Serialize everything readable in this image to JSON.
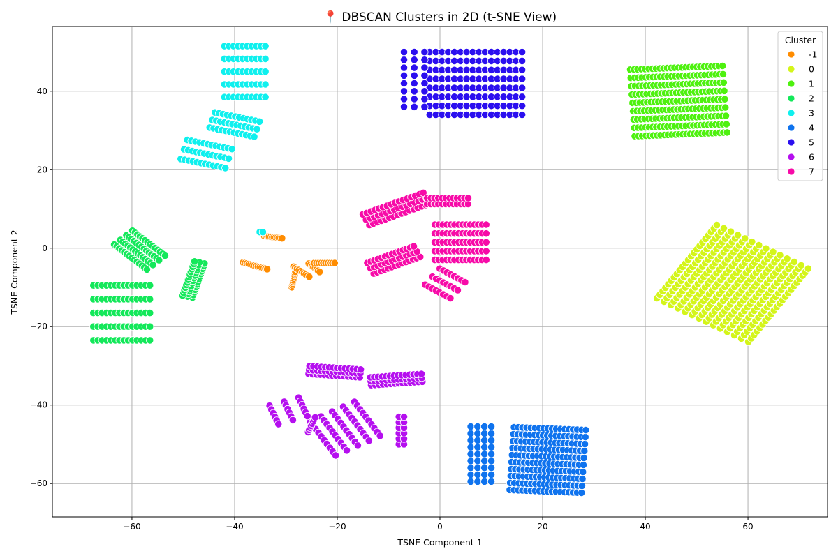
{
  "chart_data": {
    "type": "scatter",
    "title": "📍 DBSCAN Clusters in 2D (t-SNE View)",
    "xlabel": "TSNE Component 1",
    "ylabel": "TSNE Component 2",
    "xlim": [
      -75.5,
      75.5
    ],
    "ylim": [
      -68.5,
      56.5
    ],
    "xticks": [
      -60,
      -40,
      -20,
      0,
      20,
      40,
      60
    ],
    "yticks": [
      -60,
      -40,
      -20,
      0,
      20,
      40
    ],
    "xtick_labels": [
      "−60",
      "−40",
      "−20",
      "0",
      "20",
      "40",
      "60"
    ],
    "ytick_labels": [
      "−60",
      "−40",
      "−20",
      "0",
      "20",
      "40"
    ],
    "grid": true,
    "legend": {
      "title": "Cluster",
      "position": "top-right"
    },
    "series": [
      {
        "name": "-1",
        "color": "#ff8c00",
        "groups": [
          {
            "shape": "line",
            "cx": -32.5,
            "cy": 2.8,
            "len": 3.5,
            "angle": -10,
            "n": 12
          },
          {
            "shape": "line",
            "cx": -36,
            "cy": -4.5,
            "len": 5,
            "angle": -20,
            "n": 14
          },
          {
            "shape": "line",
            "cx": -28.5,
            "cy": -8,
            "len": 4,
            "angle": 80,
            "n": 10
          },
          {
            "shape": "line",
            "cx": -27,
            "cy": -6,
            "len": 4,
            "angle": -40,
            "n": 10
          },
          {
            "shape": "line",
            "cx": -24.5,
            "cy": -5,
            "len": 3,
            "angle": -45,
            "n": 8
          },
          {
            "shape": "line",
            "cx": -22.5,
            "cy": -3.8,
            "len": 4,
            "angle": 0,
            "n": 10
          }
        ]
      },
      {
        "name": "0",
        "color": "#d4f51a",
        "groups": [
          {
            "shape": "rows",
            "cx": 57,
            "cy": -9,
            "w": 22,
            "h": 21,
            "angle": 58,
            "rows": 14,
            "cols": 22
          }
        ]
      },
      {
        "name": "1",
        "color": "#4ef10f",
        "groups": [
          {
            "shape": "rows",
            "cx": 46.5,
            "cy": 37.5,
            "w": 18,
            "h": 17,
            "angle": 3,
            "rows": 9,
            "cols": 26
          }
        ]
      },
      {
        "name": "2",
        "color": "#13e85a",
        "groups": [
          {
            "shape": "rows",
            "cx": -62,
            "cy": -16.5,
            "w": 11,
            "h": 14,
            "angle": 0,
            "rows": 5,
            "cols": 14
          },
          {
            "shape": "rows",
            "cx": -58.5,
            "cy": -0.5,
            "w": 9,
            "h": 5,
            "angle": -45,
            "rows": 4,
            "cols": 14
          },
          {
            "shape": "rows",
            "cx": -48,
            "cy": -8,
            "w": 9,
            "h": 2,
            "angle": 75,
            "rows": 3,
            "cols": 14
          }
        ]
      },
      {
        "name": "3",
        "color": "#0ff0ee",
        "groups": [
          {
            "shape": "rows",
            "cx": -38,
            "cy": 45,
            "w": 8,
            "h": 13,
            "angle": 0,
            "rows": 5,
            "cols": 10
          },
          {
            "shape": "rows",
            "cx": -40,
            "cy": 31.5,
            "w": 9,
            "h": 4,
            "angle": -15,
            "rows": 3,
            "cols": 12
          },
          {
            "shape": "rows",
            "cx": -45.5,
            "cy": 24,
            "w": 9,
            "h": 5,
            "angle": -15,
            "rows": 3,
            "cols": 12
          },
          {
            "shape": "line",
            "cx": -34.8,
            "cy": 4.1,
            "len": 0.6,
            "angle": 0,
            "n": 2
          }
        ]
      },
      {
        "name": "4",
        "color": "#0f73ee",
        "groups": [
          {
            "shape": "rows",
            "cx": 21,
            "cy": -54,
            "w": 14,
            "h": 16,
            "angle": -3,
            "rows": 10,
            "cols": 18
          },
          {
            "shape": "rows",
            "cx": 8,
            "cy": -52.5,
            "w": 4,
            "h": 14,
            "angle": 0,
            "rows": 9,
            "cols": 4
          }
        ]
      },
      {
        "name": "5",
        "color": "#2b0fef",
        "groups": [
          {
            "shape": "rows",
            "cx": 7,
            "cy": 42,
            "w": 18,
            "h": 16,
            "angle": 0,
            "rows": 8,
            "cols": 16
          },
          {
            "shape": "rows",
            "cx": -5,
            "cy": 43,
            "w": 4,
            "h": 14,
            "angle": 0,
            "rows": 8,
            "cols": 3
          }
        ]
      },
      {
        "name": "6",
        "color": "#b50fef",
        "groups": [
          {
            "shape": "rows",
            "cx": -20.5,
            "cy": -31.5,
            "w": 10,
            "h": 2,
            "angle": -5,
            "rows": 3,
            "cols": 14
          },
          {
            "shape": "rows",
            "cx": -8.5,
            "cy": -33.5,
            "w": 10,
            "h": 2,
            "angle": 5,
            "rows": 3,
            "cols": 14
          },
          {
            "shape": "rows",
            "cx": -18.5,
            "cy": -46,
            "w": 10,
            "h": 10,
            "angle": -60,
            "rows": 5,
            "cols": 10
          },
          {
            "shape": "rows",
            "cx": -29.5,
            "cy": -41.5,
            "w": 5,
            "h": 6,
            "angle": -70,
            "rows": 3,
            "cols": 6
          },
          {
            "shape": "rows",
            "cx": -7.5,
            "cy": -46.5,
            "w": 1,
            "h": 7,
            "angle": 0,
            "rows": 6,
            "cols": 2
          },
          {
            "shape": "line",
            "cx": -25,
            "cy": -45,
            "len": 4,
            "angle": 70,
            "n": 8
          }
        ]
      },
      {
        "name": "7",
        "color": "#f70ba8",
        "groups": [
          {
            "shape": "rows",
            "cx": -8.5,
            "cy": 10,
            "w": 13,
            "h": 3,
            "angle": 25,
            "rows": 3,
            "cols": 16
          },
          {
            "shape": "rows",
            "cx": 1.5,
            "cy": 12,
            "w": 8,
            "h": 1.5,
            "angle": 0,
            "rows": 2,
            "cols": 12
          },
          {
            "shape": "rows",
            "cx": 4,
            "cy": 1.5,
            "w": 10,
            "h": 9,
            "angle": 0,
            "rows": 5,
            "cols": 14
          },
          {
            "shape": "rows",
            "cx": -9,
            "cy": -3,
            "w": 10,
            "h": 3,
            "angle": 25,
            "rows": 3,
            "cols": 14
          },
          {
            "shape": "rows",
            "cx": 1,
            "cy": -9,
            "w": 6,
            "h": 5,
            "angle": -35,
            "rows": 3,
            "cols": 8
          }
        ]
      }
    ]
  }
}
